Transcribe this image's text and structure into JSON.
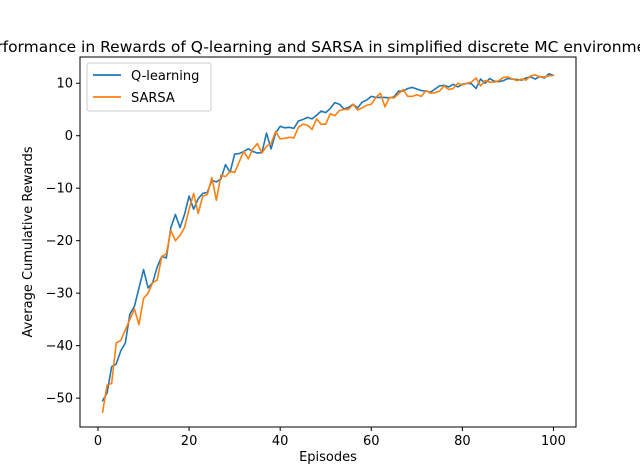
{
  "chart_data": {
    "type": "line",
    "title": "Performance in Rewards of Q-learning and SARSA in simplified discrete MC environment",
    "xlabel": "Episodes",
    "ylabel": "Average Cumulative Rewards",
    "xlim": [
      -3.95,
      104.95
    ],
    "ylim": [
      -55.5,
      15
    ],
    "xticks": [
      0,
      20,
      40,
      60,
      80,
      100
    ],
    "xtick_labels": [
      "0",
      "20",
      "40",
      "60",
      "80",
      "100"
    ],
    "yticks": [
      -50,
      -40,
      -30,
      -20,
      -10,
      0,
      10
    ],
    "ytick_labels": [
      "−50",
      "−40",
      "−30",
      "−20",
      "−10",
      "0",
      "10"
    ],
    "grid": false,
    "legend_position": "upper-left",
    "x": [
      1,
      2,
      3,
      4,
      5,
      6,
      7,
      8,
      9,
      10,
      11,
      12,
      13,
      14,
      15,
      16,
      17,
      18,
      19,
      20,
      21,
      22,
      23,
      24,
      25,
      26,
      27,
      28,
      29,
      30,
      31,
      32,
      33,
      34,
      35,
      36,
      37,
      38,
      39,
      40,
      41,
      42,
      43,
      44,
      45,
      46,
      47,
      48,
      49,
      50,
      51,
      52,
      53,
      54,
      55,
      56,
      57,
      58,
      59,
      60,
      61,
      62,
      63,
      64,
      65,
      66,
      67,
      68,
      69,
      70,
      71,
      72,
      73,
      74,
      75,
      76,
      77,
      78,
      79,
      80,
      81,
      82,
      83,
      84,
      85,
      86,
      87,
      88,
      89,
      90,
      91,
      92,
      93,
      94,
      95,
      96,
      97,
      98,
      99,
      100
    ],
    "series": [
      {
        "name": "Q-learning",
        "color": "#1f77b4",
        "values": [
          -50.5,
          -49,
          -44,
          -43.5,
          -41,
          -39.5,
          -34,
          -32.5,
          -29,
          -25.5,
          -29,
          -28,
          -25,
          -23,
          -23.3,
          -17.5,
          -15,
          -17.5,
          -15,
          -11.5,
          -14,
          -12,
          -11,
          -10.8,
          -8.5,
          -8.8,
          -8.2,
          -5.5,
          -7,
          -3.5,
          -3.4,
          -3,
          -2.5,
          -3,
          -3.3,
          -3.2,
          0.5,
          -2.5,
          0.5,
          1.8,
          1.5,
          1.6,
          1.4,
          2.8,
          3.1,
          3.5,
          3.2,
          3.9,
          4.7,
          4.4,
          5.2,
          6.3,
          6,
          5.1,
          5.4,
          6,
          5.3,
          6.4,
          6.8,
          7.5,
          7.3,
          7.3,
          7.3,
          7.2,
          7.4,
          8.5,
          8.5,
          9,
          9.2,
          8.9,
          8.6,
          8.5,
          8.3,
          8.9,
          9.5,
          9.6,
          9.3,
          9.8,
          9.3,
          9.8,
          10,
          9.9,
          9,
          10.8,
          10,
          10.9,
          10.4,
          10.3,
          10.5,
          10.9,
          10.8,
          10.7,
          10.6,
          11,
          11.2,
          10.8,
          11.3,
          11,
          11.8,
          11.5
        ]
      },
      {
        "name": "SARSA",
        "color": "#ff7f0e",
        "values": [
          -52.7,
          -47.5,
          -47.2,
          -39.5,
          -39,
          -37,
          -35,
          -33,
          -36,
          -31,
          -30,
          -28,
          -27.5,
          -23,
          -22.5,
          -18,
          -20,
          -19,
          -17.5,
          -14,
          -11,
          -14.8,
          -11.5,
          -11.2,
          -8,
          -12.3,
          -7.5,
          -7.8,
          -6.8,
          -7,
          -5,
          -3,
          -4.4,
          -2.5,
          -1.5,
          -3.3,
          -2,
          -1.5,
          0.8,
          -0.6,
          -0.5,
          -0.3,
          -0.4,
          1.6,
          2.2,
          2,
          1.2,
          3.2,
          2.2,
          2.2,
          4.2,
          3.8,
          4.8,
          5,
          5,
          6,
          4.9,
          5.3,
          5.8,
          6,
          7.3,
          8.1,
          5.5,
          7.3,
          7.2,
          8,
          8.8,
          7.5,
          7.5,
          7.8,
          7.5,
          8.6,
          8.1,
          8.2,
          8.5,
          9.5,
          8.8,
          9,
          10,
          9.7,
          10,
          10.2,
          11,
          9.5,
          10.5,
          10.2,
          10.2,
          10.5,
          11.1,
          11.2,
          10.8,
          10.5,
          10.8,
          10.6,
          11.4,
          11.6,
          11.2,
          11.2,
          11.4,
          11.5
        ]
      }
    ]
  }
}
